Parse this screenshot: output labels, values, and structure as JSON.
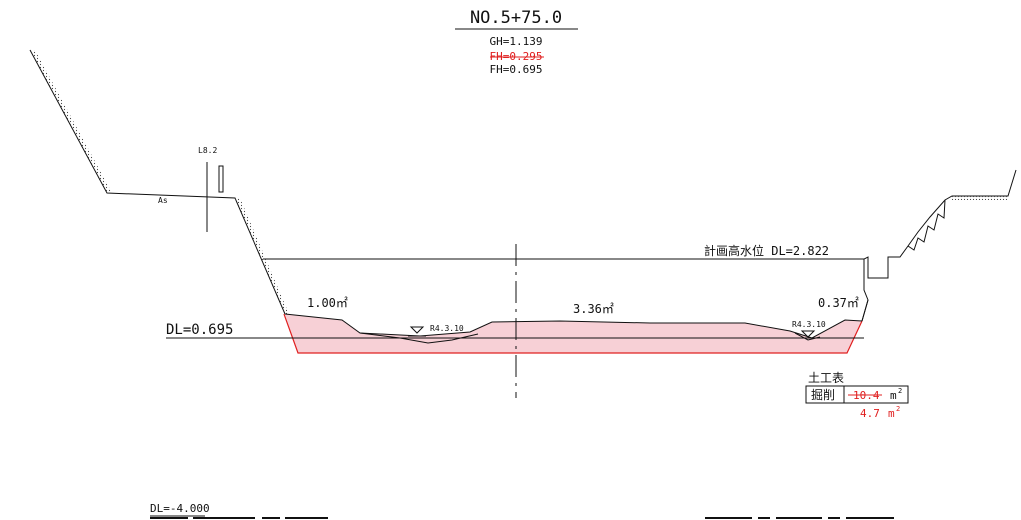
{
  "header": {
    "station": "NO.5+75.0",
    "gh": "GH=1.139",
    "fh_struck": "FH=0.295",
    "fh": "FH=0.695"
  },
  "left_bank": {
    "level_label": "L8.2",
    "pavement_label": "As"
  },
  "water": {
    "plan_hwl_label": "計画高水位 DL=2.822",
    "survey_mark_left": "R4.3.10",
    "survey_mark_right": "R4.3.10"
  },
  "areas": {
    "left": "1.00㎡",
    "center": "3.36㎡",
    "right": "0.37㎡"
  },
  "datum": {
    "design_level": "DL=0.695",
    "bottom_level": "DL=-4.000"
  },
  "earthwork_table": {
    "title": "土工表",
    "row_label": "掘削",
    "old_value": "10.4",
    "unit": "m",
    "unit_exp": "2",
    "new_value": "4.7",
    "new_unit": "m",
    "new_unit_exp": "2"
  },
  "colors": {
    "excavation_fill": "#f7d0d6",
    "excavation_line": "#e02020",
    "line": "#111111"
  }
}
